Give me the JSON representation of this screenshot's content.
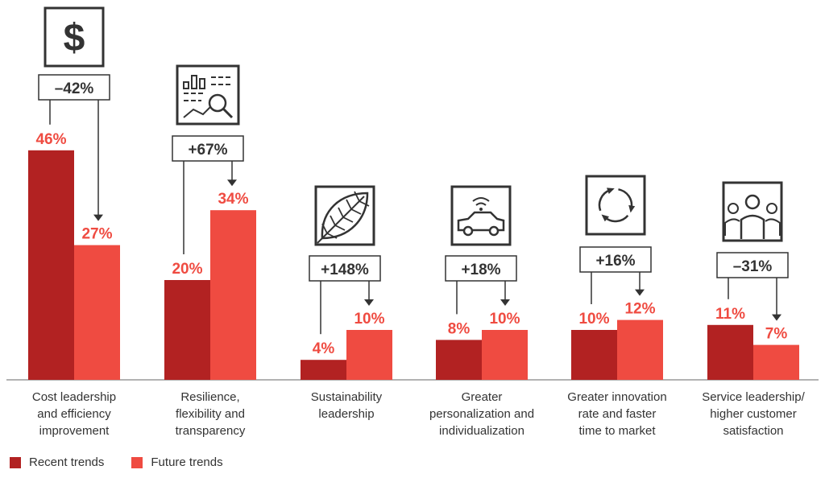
{
  "chart_data": {
    "type": "bar",
    "categories": [
      "Cost leadership and efficiency improvement",
      "Resilience, flexibility and transparency",
      "Sustainability leadership",
      "Greater personalization and individualization",
      "Greater innovation rate and faster time to market",
      "Service leadership/ higher customer satisfaction"
    ],
    "category_lines": [
      [
        "Cost leadership",
        "and efficiency",
        "improvement"
      ],
      [
        "Resilience,",
        "flexibility and",
        "transparency"
      ],
      [
        "Sustainability",
        "leadership"
      ],
      [
        "Greater",
        "personalization and",
        "individualization"
      ],
      [
        "Greater innovation",
        "rate and faster",
        "time to market"
      ],
      [
        "Service leadership/",
        "higher customer",
        "satisfaction"
      ]
    ],
    "series": [
      {
        "name": "Recent trends",
        "values": [
          46,
          20,
          4,
          8,
          10,
          11
        ],
        "color": "#b22222"
      },
      {
        "name": "Future trends",
        "values": [
          27,
          34,
          10,
          10,
          12,
          7
        ],
        "color": "#ef4b41"
      }
    ],
    "value_labels": {
      "recent": [
        "46%",
        "20%",
        "4%",
        "8%",
        "10%",
        "11%"
      ],
      "future": [
        "27%",
        "34%",
        "10%",
        "10%",
        "12%",
        "7%"
      ]
    },
    "changes": [
      "–42%",
      "+67%",
      "+148%",
      "+18%",
      "+16%",
      "–31%"
    ],
    "icons": [
      "dollar-icon",
      "analytics-icon",
      "leaf-icon",
      "connected-car-icon",
      "cycle-arrows-icon",
      "customers-icon"
    ],
    "ylim": [
      0,
      50
    ],
    "grid": false,
    "legend_position": "bottom-left",
    "label_color": "#ef4b41"
  }
}
